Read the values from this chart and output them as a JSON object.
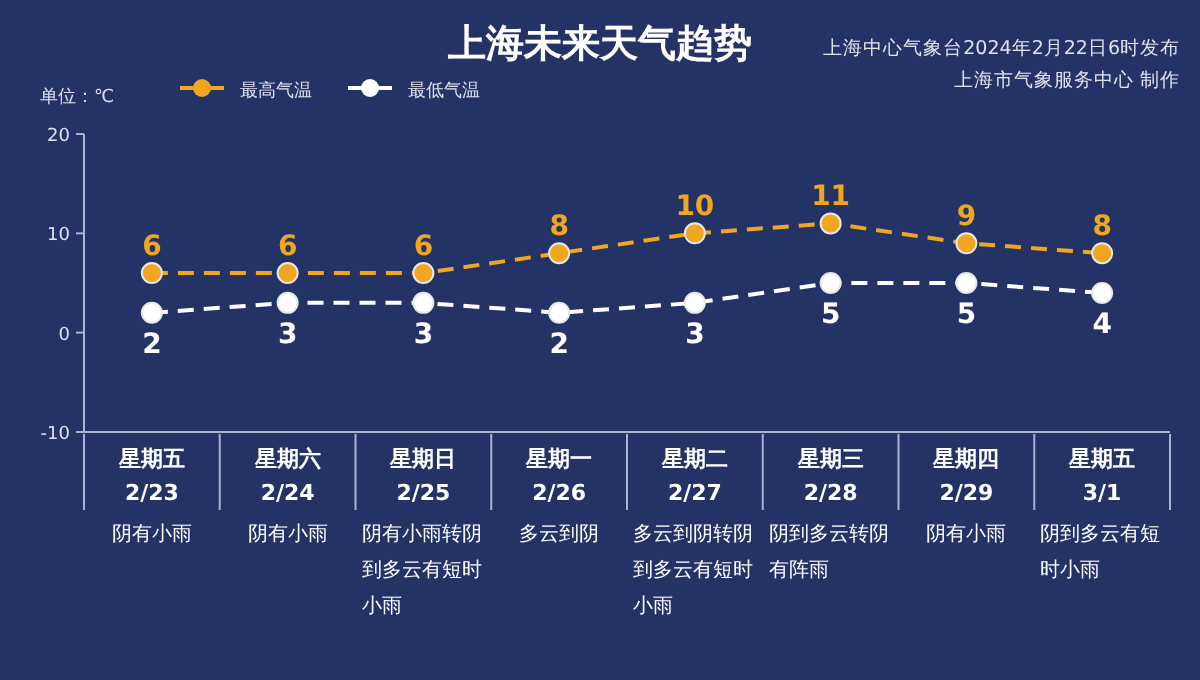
{
  "chart_data": {
    "type": "line",
    "title": "上海未来天气趋势",
    "ylabel": "单位：℃",
    "annotations": [
      "上海中心气象台2024年2月22日6时发布",
      "上海市气象服务中心 制作"
    ],
    "categories": [
      "星期五\n2/23\n阴有小雨",
      "星期六\n2/24\n阴有小雨",
      "星期日\n2/25\n阴有小雨转阴到多云有短时小雨",
      "星期一\n2/26\n多云到阴",
      "星期二\n2/27\n多云到阴转阴到多云有短时小雨",
      "星期三\n2/28\n阴到多云转阴有阵雨",
      "星期四\n2/29\n阴有小雨",
      "星期五\n3/1\n阴到多云有短时小雨"
    ],
    "series": [
      {
        "name": "最高气温",
        "color": "#f0a71f",
        "values": [
          6,
          6,
          6,
          8,
          10,
          11,
          9,
          8
        ]
      },
      {
        "name": "最低气温",
        "color": "#ffffff",
        "values": [
          2,
          3,
          3,
          2,
          3,
          5,
          5,
          4
        ]
      }
    ],
    "ylim": [
      -10,
      20
    ],
    "yticks": [
      -10,
      0,
      10,
      20
    ],
    "grid": false,
    "legend": "top left",
    "marker": "circle",
    "line_style": "dashed",
    "data_labels": true
  }
}
